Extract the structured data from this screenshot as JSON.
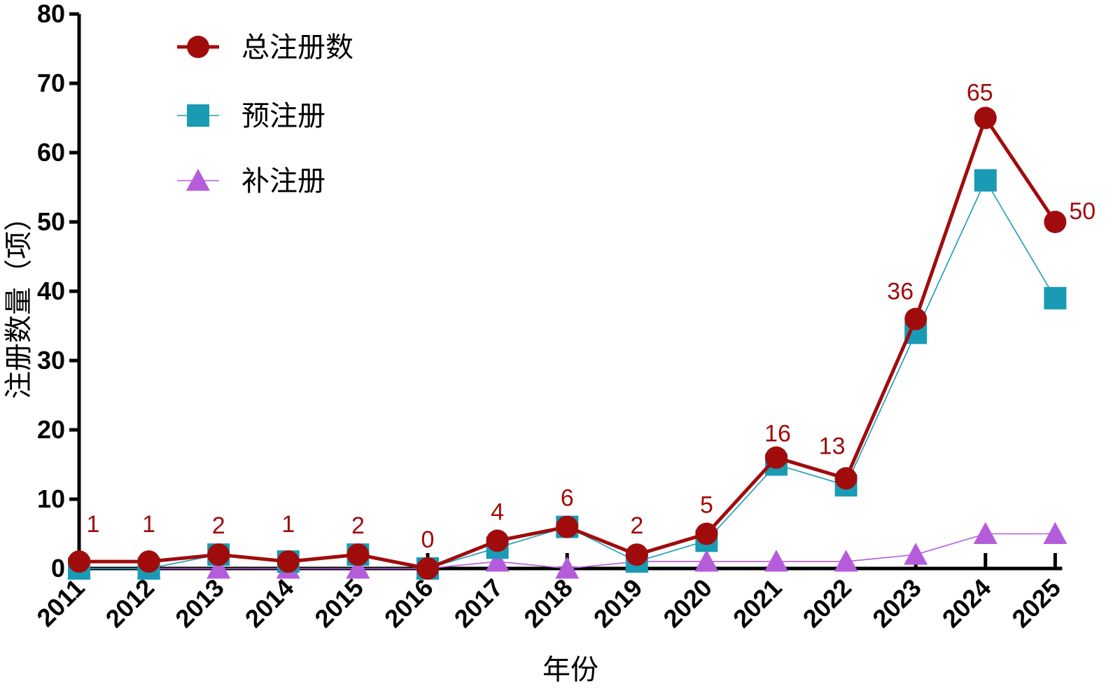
{
  "chart_data": {
    "type": "line",
    "title": "",
    "xlabel": "年份",
    "ylabel": "注册数量（项）",
    "categories": [
      "2011",
      "2012",
      "2013",
      "2014",
      "2015",
      "2016",
      "2017",
      "2018",
      "2019",
      "2020",
      "2021",
      "2022",
      "2023",
      "2024",
      "2025"
    ],
    "yticks": [
      "0",
      "10",
      "20",
      "30",
      "40",
      "50",
      "60",
      "70",
      "80"
    ],
    "ylim": [
      0,
      80
    ],
    "legend_position": "top-left",
    "grid": false,
    "series": [
      {
        "name": "总注册数",
        "key": "total",
        "color": "#A00C0C",
        "marker": "circle",
        "values": [
          1,
          1,
          2,
          1,
          2,
          0,
          4,
          6,
          2,
          5,
          16,
          13,
          36,
          65,
          50
        ]
      },
      {
        "name": "预注册",
        "key": "pre",
        "color": "#1A9BB5",
        "marker": "square",
        "values": [
          0,
          0,
          2,
          1,
          2,
          0,
          3,
          6,
          1,
          4,
          15,
          12,
          34,
          56,
          39
        ]
      },
      {
        "name": "补注册",
        "key": "post",
        "color": "#B55CDB",
        "marker": "triangle",
        "values": [
          0,
          0,
          0,
          0,
          0,
          0,
          1,
          0,
          1,
          1,
          1,
          1,
          2,
          5,
          5
        ]
      }
    ],
    "data_labels": [
      "1",
      "1",
      "2",
      "1",
      "2",
      "0",
      "4",
      "6",
      "2",
      "5",
      "16",
      "13",
      "36",
      "65",
      "50"
    ]
  }
}
